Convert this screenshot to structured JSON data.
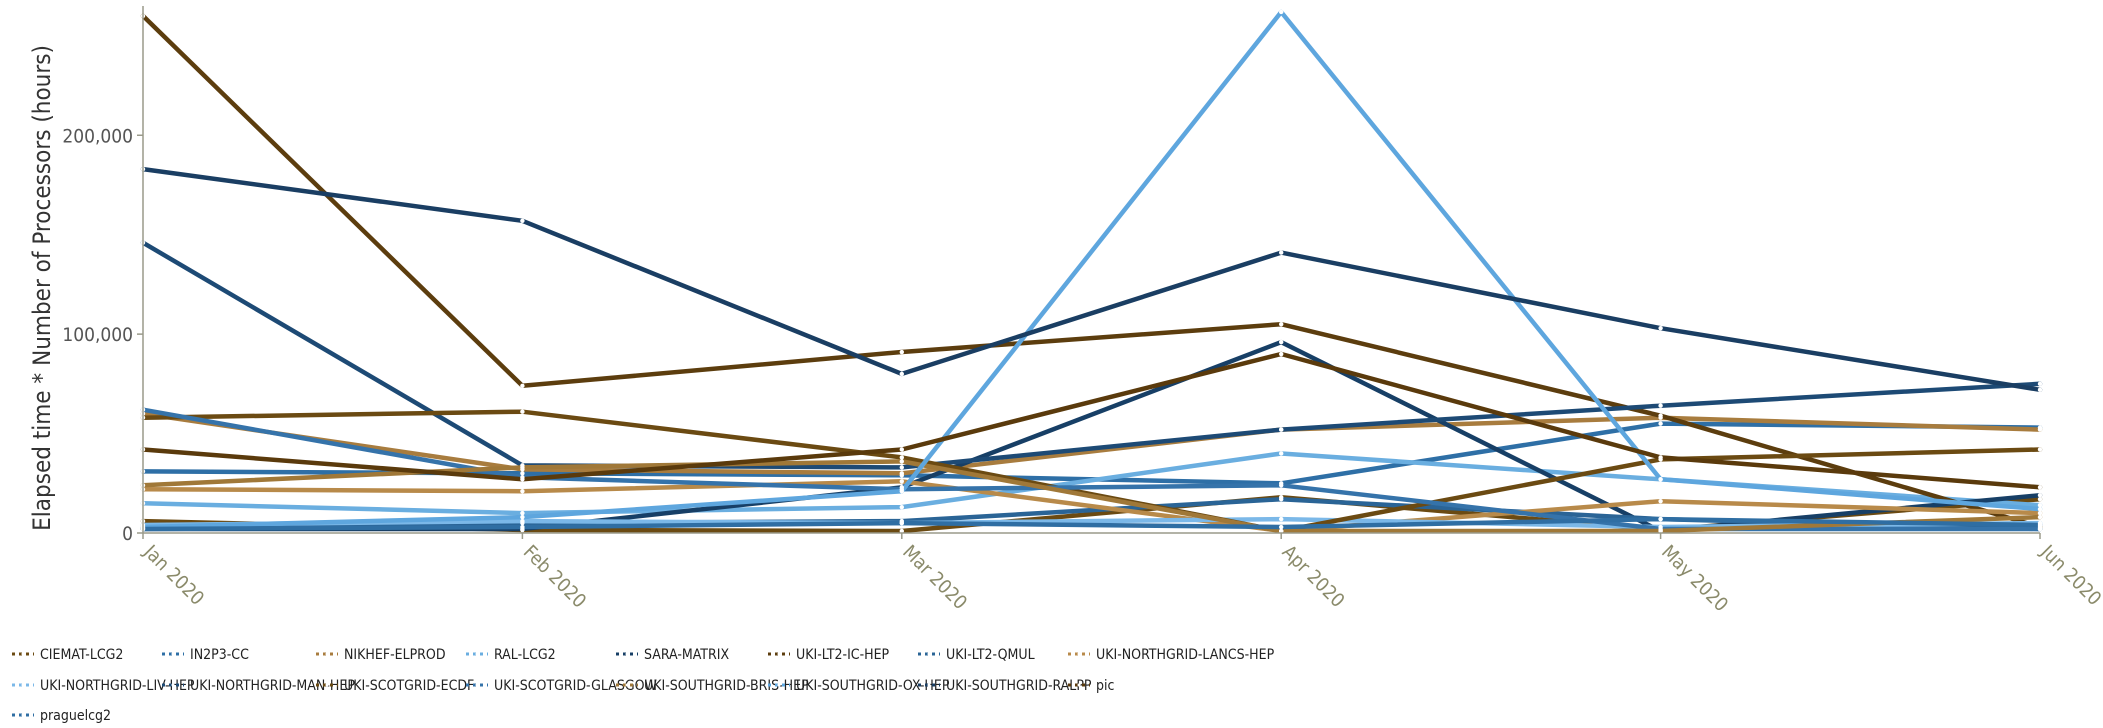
{
  "chart_data": {
    "type": "line",
    "title": "",
    "xlabel": "",
    "ylabel": "Elapsed time * Number of Processors (hours)",
    "categories": [
      "Jan 2020",
      "Feb 2020",
      "Mar 2020",
      "Apr 2020",
      "May 2020",
      "Jun 2020"
    ],
    "ylim": [
      0,
      265000
    ],
    "yticks": [
      0,
      100000,
      200000
    ],
    "ytick_labels": [
      "0",
      "100,000",
      "200,000"
    ],
    "grid": false,
    "legend_position": "bottom",
    "series": [
      {
        "name": "CIEMAT-LCG2",
        "color": "#6b4a12",
        "values": [
          6000,
          1500,
          1000,
          18000,
          1500,
          17000
        ]
      },
      {
        "name": "IN2P3-CC",
        "color": "#2e6fa6",
        "values": [
          31000,
          30000,
          29000,
          25000,
          55000,
          53000
        ]
      },
      {
        "name": "NIKHEF-ELPROD",
        "color": "#a87c3e",
        "values": [
          60000,
          32000,
          30000,
          52000,
          58000,
          52000
        ]
      },
      {
        "name": "RAL-LCG2",
        "color": "#6aaee0",
        "values": [
          15000,
          10000,
          13000,
          40000,
          27000,
          14000
        ]
      },
      {
        "name": "SARA-MATRIX",
        "color": "#173f66",
        "values": [
          2000,
          2000,
          23000,
          96000,
          1000,
          19000
        ]
      },
      {
        "name": "UKI-LT2-IC-HEP",
        "color": "#5c3d0e",
        "values": [
          260000,
          74000,
          91000,
          105000,
          59000,
          3000
        ]
      },
      {
        "name": "UKI-LT2-QMUL",
        "color": "#2a6496",
        "values": [
          2500,
          5000,
          6000,
          17000,
          7000,
          2000
        ]
      },
      {
        "name": "UKI-NORTHGRID-LANCS-HEP",
        "color": "#b88a4a",
        "values": [
          22000,
          21000,
          26000,
          1000,
          16000,
          10000
        ]
      },
      {
        "name": "UKI-NORTHGRID-LIV-HEP",
        "color": "#7bb8e8",
        "values": [
          4000,
          6000,
          5000,
          7000,
          3000,
          5000
        ]
      },
      {
        "name": "UKI-NORTHGRID-MAN-HEP",
        "color": "#1d4a75",
        "values": [
          146000,
          34000,
          33000,
          52000,
          64000,
          75000
        ]
      },
      {
        "name": "UKI-SCOTGRID-ECDF",
        "color": "#6b4a12",
        "values": [
          58000,
          61000,
          38000,
          1000,
          37000,
          42000
        ]
      },
      {
        "name": "UKI-SCOTGRID-GLASGOW",
        "color": "#3573aa",
        "values": [
          62000,
          28000,
          22000,
          24000,
          2000,
          2000
        ]
      },
      {
        "name": "UKI-SOUTHGRID-BRIS-HEP",
        "color": "#a07838",
        "values": [
          24000,
          33000,
          36000,
          1000,
          1000,
          8000
        ]
      },
      {
        "name": "UKI-SOUTHGRID-OX-HEP",
        "color": "#5ea6de",
        "values": [
          3000,
          8000,
          21000,
          262000,
          27000,
          12000
        ]
      },
      {
        "name": "UKI-SOUTHGRID-RALPP",
        "color": "#1a3e63",
        "values": [
          183000,
          157000,
          80000,
          141000,
          103000,
          72000
        ]
      },
      {
        "name": "pic",
        "color": "#5a3a0c",
        "values": [
          42000,
          27000,
          42000,
          90000,
          38000,
          23000
        ]
      },
      {
        "name": "praguelcg2",
        "color": "#2f6ea3",
        "values": [
          2000,
          3000,
          5000,
          3000,
          7000,
          4000
        ]
      }
    ]
  }
}
